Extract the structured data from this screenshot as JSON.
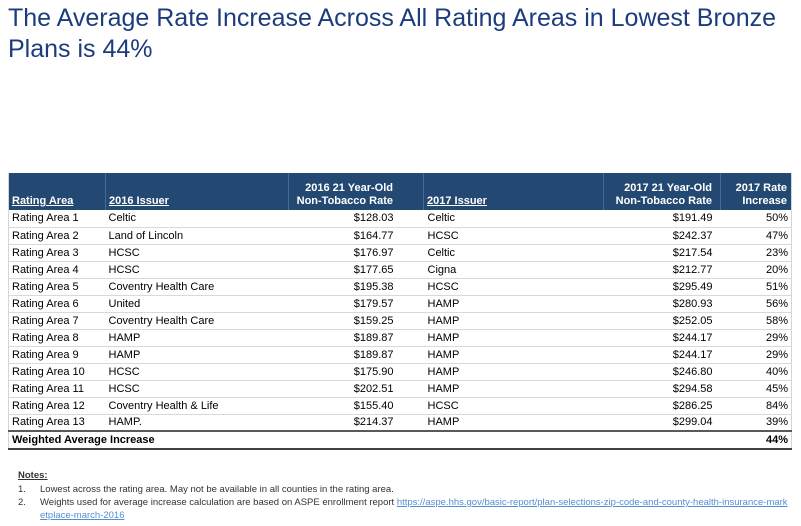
{
  "title": "The Average Rate Increase Across All Rating Areas in Lowest Bronze Plans is 44%",
  "colors": {
    "title_text": "#1c3c7e",
    "table_header_bg": "#234973",
    "link": "#548dd4"
  },
  "table": {
    "headers": [
      "Rating Area",
      "2016 Issuer",
      "2016 21 Year-Old\nNon-Tobacco Rate",
      "2017 Issuer",
      "2017 21 Year-Old\nNon-Tobacco Rate",
      "2017 Rate\nIncrease"
    ],
    "rows": [
      [
        "Rating Area 1",
        "Celtic",
        "$128.03",
        "Celtic",
        "$191.49",
        "50%"
      ],
      [
        "Rating Area 2",
        "Land of Lincoln",
        "$164.77",
        "HCSC",
        "$242.37",
        "47%"
      ],
      [
        "Rating Area 3",
        "HCSC",
        "$176.97",
        "Celtic",
        "$217.54",
        "23%"
      ],
      [
        "Rating Area 4",
        "HCSC",
        "$177.65",
        "Cigna",
        "$212.77",
        "20%"
      ],
      [
        "Rating Area 5",
        "Coventry Health Care",
        "$195.38",
        "HCSC",
        "$295.49",
        "51%"
      ],
      [
        "Rating Area 6",
        "United",
        "$179.57",
        "HAMP",
        "$280.93",
        "56%"
      ],
      [
        "Rating Area 7",
        "Coventry Health Care",
        "$159.25",
        "HAMP",
        "$252.05",
        "58%"
      ],
      [
        "Rating Area 8",
        "HAMP",
        "$189.87",
        "HAMP",
        "$244.17",
        "29%"
      ],
      [
        "Rating Area 9",
        "HAMP",
        "$189.87",
        "HAMP",
        "$244.17",
        "29%"
      ],
      [
        "Rating Area 10",
        "HCSC",
        "$175.90",
        "HAMP",
        "$246.80",
        "40%"
      ],
      [
        "Rating Area 11",
        "HCSC",
        "$202.51",
        "HAMP",
        "$294.58",
        "45%"
      ],
      [
        "Rating Area 12",
        "Coventry Health & Life",
        "$155.40",
        "HCSC",
        "$286.25",
        "84%"
      ],
      [
        "Rating Area 13",
        "HAMP.",
        "$214.37",
        "HAMP",
        "$299.04",
        "39%"
      ]
    ],
    "footer": {
      "label": "Weighted Average Increase",
      "value": "44%"
    }
  },
  "notes": {
    "heading": "Notes:",
    "items": [
      {
        "number": "1.",
        "text": "Lowest across the rating area. May not be available in all counties in the rating area.",
        "link": ""
      },
      {
        "number": "2.",
        "text": "Weights used for average increase calculation are based on ASPE enrollment report ",
        "link": "https://aspe.hhs.gov/basic-report/plan-selections-zip-code-and-county-health-insurance-marketplace-march-2016"
      }
    ]
  }
}
